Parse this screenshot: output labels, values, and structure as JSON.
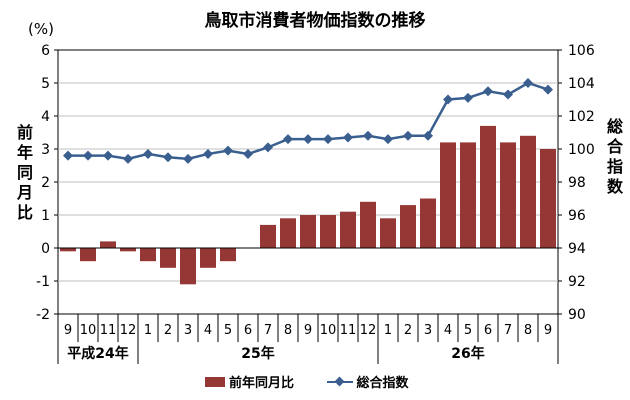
{
  "chart_data": {
    "type": "bar",
    "title": "鳥取市消費者物価指数の推移",
    "unit_label": "(%)",
    "y_left_label": "前年同月比",
    "y_right_label": "総合指数",
    "ylim_left": [
      -2,
      6
    ],
    "ylim_right": [
      90,
      106
    ],
    "yticks_left": [
      "-2",
      "-1",
      "0",
      "1",
      "2",
      "3",
      "4",
      "5",
      "6"
    ],
    "yticks_right": [
      "90",
      "92",
      "94",
      "96",
      "98",
      "100",
      "102",
      "104",
      "106"
    ],
    "categories": [
      "9",
      "10",
      "11",
      "12",
      "1",
      "2",
      "3",
      "4",
      "5",
      "6",
      "7",
      "8",
      "9",
      "10",
      "11",
      "12",
      "1",
      "2",
      "3",
      "4",
      "5",
      "6",
      "7",
      "8",
      "9"
    ],
    "year_groups": [
      {
        "label": "平成24年",
        "count": 4
      },
      {
        "label": "25年",
        "count": 12
      },
      {
        "label": "26年",
        "count": 9
      }
    ],
    "series": [
      {
        "name": "前年同月比",
        "type": "bar",
        "axis": "left",
        "color": "#953735",
        "values": [
          -0.1,
          -0.4,
          0.2,
          -0.1,
          -0.4,
          -0.6,
          -1.1,
          -0.6,
          -0.4,
          0.0,
          0.7,
          0.9,
          1.0,
          1.0,
          1.1,
          1.4,
          0.9,
          1.3,
          1.5,
          3.2,
          3.2,
          3.7,
          3.2,
          3.4,
          3.0
        ]
      },
      {
        "name": "総合指数",
        "type": "line",
        "axis": "right",
        "color": "#3A5F8F",
        "values": [
          99.6,
          99.6,
          99.6,
          99.4,
          99.7,
          99.5,
          99.4,
          99.7,
          99.9,
          99.7,
          100.1,
          100.6,
          100.6,
          100.6,
          100.7,
          100.8,
          100.6,
          100.8,
          100.8,
          103.0,
          103.1,
          103.5,
          103.3,
          104.0,
          103.6
        ]
      }
    ],
    "grid": true,
    "legend_position": "bottom"
  }
}
